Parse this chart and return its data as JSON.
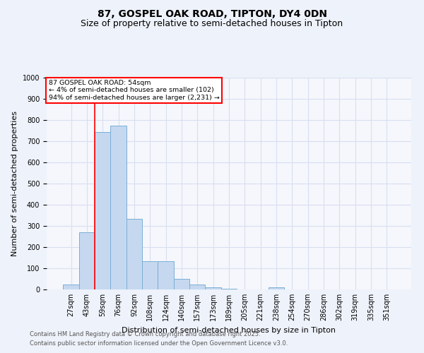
{
  "title1": "87, GOSPEL OAK ROAD, TIPTON, DY4 0DN",
  "title2": "Size of property relative to semi-detached houses in Tipton",
  "xlabel": "Distribution of semi-detached houses by size in Tipton",
  "ylabel": "Number of semi-detached properties",
  "categories": [
    "27sqm",
    "43sqm",
    "59sqm",
    "76sqm",
    "92sqm",
    "108sqm",
    "124sqm",
    "140sqm",
    "157sqm",
    "173sqm",
    "189sqm",
    "205sqm",
    "221sqm",
    "238sqm",
    "254sqm",
    "270sqm",
    "286sqm",
    "302sqm",
    "319sqm",
    "335sqm",
    "351sqm"
  ],
  "values": [
    25,
    270,
    745,
    775,
    335,
    135,
    135,
    50,
    25,
    10,
    5,
    0,
    0,
    10,
    0,
    0,
    0,
    0,
    0,
    0,
    0
  ],
  "bar_color": "#c5d8f0",
  "bar_edge_color": "#7aafd4",
  "annotation_box_text": "87 GOSPEL OAK ROAD: 54sqm\n← 4% of semi-detached houses are smaller (102)\n94% of semi-detached houses are larger (2,231) →",
  "annotation_box_color": "white",
  "annotation_box_edge_color": "red",
  "vline_color": "red",
  "vline_x": 1.5,
  "ylim": [
    0,
    1000
  ],
  "yticks": [
    0,
    100,
    200,
    300,
    400,
    500,
    600,
    700,
    800,
    900,
    1000
  ],
  "footer1": "Contains HM Land Registry data © Crown copyright and database right 2025.",
  "footer2": "Contains public sector information licensed under the Open Government Licence v3.0.",
  "bg_color": "#eef2fa",
  "plot_bg_color": "#f5f7fc",
  "grid_color": "#d8dff0",
  "title1_fontsize": 10,
  "title2_fontsize": 9,
  "label_fontsize": 8,
  "tick_fontsize": 7,
  "footer_fontsize": 6
}
